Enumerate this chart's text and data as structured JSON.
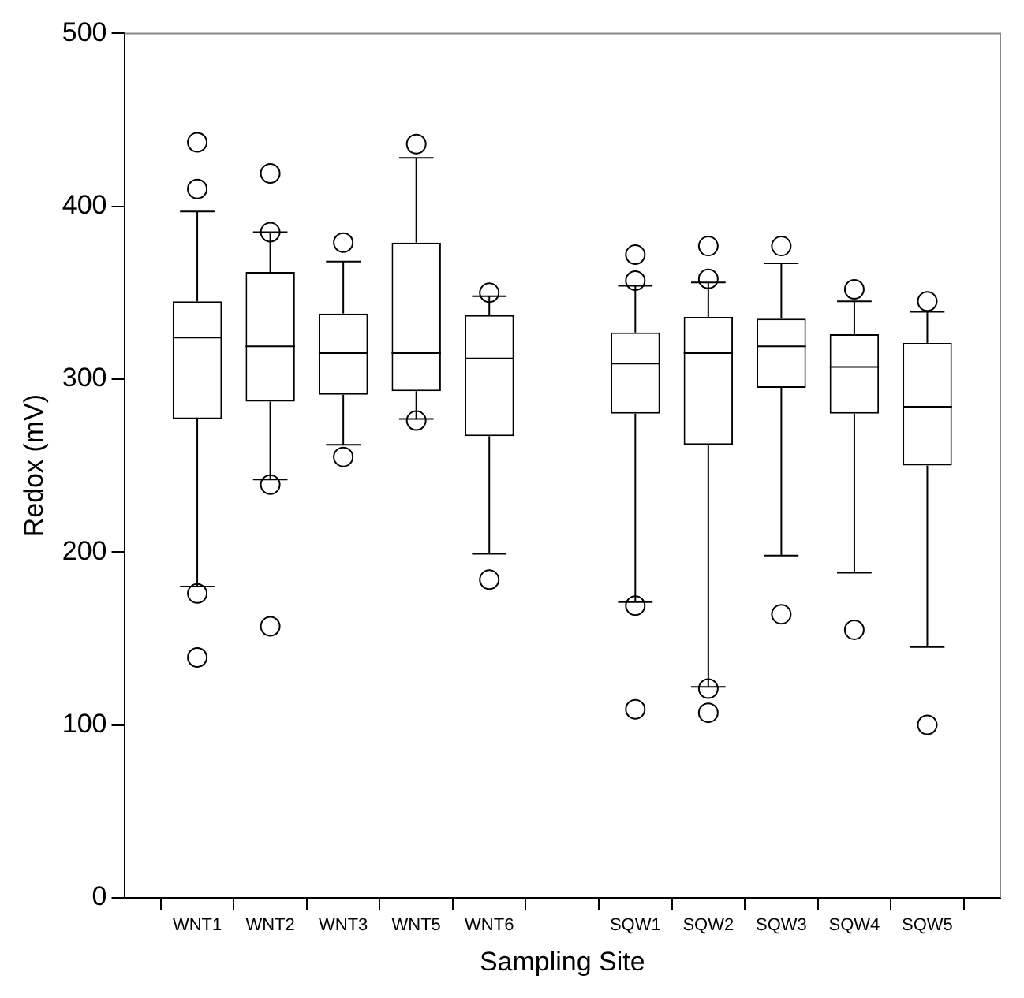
{
  "chart_data": {
    "type": "box",
    "xlabel": "Sampling Site",
    "ylabel": "Redox (mV)",
    "categories": [
      null,
      "WNT1",
      "WNT2",
      "WNT3",
      "WNT5",
      "WNT6",
      null,
      "SQW1",
      "SQW2",
      "SQW3",
      "SQW4",
      "SQW5",
      null
    ],
    "boxes": [
      null,
      {
        "low": 180,
        "q1": 277,
        "median": 324,
        "q3": 345,
        "high": 397,
        "outliers": [
          437,
          410,
          176,
          139
        ]
      },
      {
        "low": 242,
        "q1": 287,
        "median": 319,
        "q3": 362,
        "high": 385,
        "outliers": [
          419,
          385,
          239,
          157
        ]
      },
      {
        "low": 262,
        "q1": 291,
        "median": 315,
        "q3": 338,
        "high": 368,
        "outliers": [
          379,
          255
        ]
      },
      {
        "low": 277,
        "q1": 293,
        "median": 315,
        "q3": 379,
        "high": 428,
        "outliers": [
          436,
          276
        ]
      },
      {
        "low": 199,
        "q1": 267,
        "median": 312,
        "q3": 337,
        "high": 348,
        "outliers": [
          350,
          184
        ]
      },
      null,
      {
        "low": 171,
        "q1": 280,
        "median": 309,
        "q3": 327,
        "high": 354,
        "outliers": [
          372,
          357,
          169,
          109
        ]
      },
      {
        "low": 122,
        "q1": 262,
        "median": 315,
        "q3": 336,
        "high": 356,
        "outliers": [
          377,
          358,
          121,
          107
        ]
      },
      {
        "low": 198,
        "q1": 295,
        "median": 319,
        "q3": 335,
        "high": 367,
        "outliers": [
          377,
          164
        ]
      },
      {
        "low": 188,
        "q1": 280,
        "median": 307,
        "q3": 326,
        "high": 345,
        "outliers": [
          352,
          155
        ]
      },
      {
        "low": 145,
        "q1": 250,
        "median": 284,
        "q3": 321,
        "high": 339,
        "outliers": [
          345,
          100
        ]
      },
      null
    ],
    "ylim": [
      0,
      500
    ],
    "yticks": [
      0,
      100,
      200,
      300,
      400,
      500
    ],
    "grid": false,
    "legend": false
  }
}
